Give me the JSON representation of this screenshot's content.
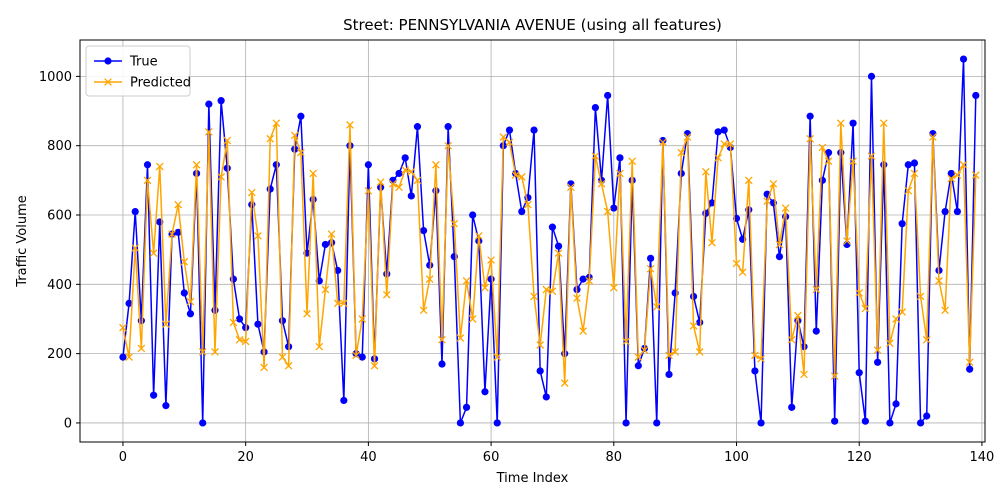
{
  "chart_data": {
    "type": "line",
    "title": "Street: PENNSYLVANIA AVENUE (using all features)",
    "xlabel": "Time Index",
    "ylabel": "Traffic Volume",
    "xlim": [
      -7,
      140.5
    ],
    "ylim": [
      -55,
      1105
    ],
    "xticks": [
      0,
      20,
      40,
      60,
      80,
      100,
      120,
      140
    ],
    "yticks": [
      0,
      200,
      400,
      600,
      800,
      1000
    ],
    "grid": true,
    "legend": "top-left",
    "colors": {
      "true": "#0000ff",
      "predicted": "#ffa500"
    },
    "x_start": 0,
    "series": [
      {
        "name": "True",
        "marker": "circle",
        "values": [
          190,
          345,
          610,
          295,
          745,
          80,
          580,
          50,
          545,
          550,
          375,
          315,
          720,
          0,
          920,
          325,
          930,
          735,
          415,
          300,
          275,
          630,
          285,
          205,
          675,
          745,
          295,
          220,
          790,
          885,
          490,
          645,
          410,
          515,
          520,
          440,
          65,
          800,
          200,
          190,
          745,
          185,
          680,
          430,
          700,
          720,
          765,
          655,
          855,
          555,
          455,
          670,
          170,
          855,
          480,
          0,
          45,
          600,
          525,
          90,
          415,
          0,
          800,
          845,
          720,
          610,
          650,
          845,
          150,
          75,
          565,
          510,
          200,
          690,
          385,
          415,
          420,
          910,
          700,
          945,
          620,
          765,
          0,
          700,
          165,
          215,
          475,
          0,
          815,
          140,
          375,
          720,
          835,
          365,
          290,
          605,
          635,
          840,
          845,
          795,
          590,
          530,
          615,
          150,
          0,
          660,
          635,
          480,
          595,
          45,
          295,
          220,
          885,
          265,
          700,
          780,
          5,
          780,
          515,
          865,
          145,
          5,
          1000,
          175,
          745,
          0,
          55,
          575,
          745,
          750,
          0,
          20,
          835,
          440,
          610,
          720,
          610,
          1050,
          155,
          945
        ]
      },
      {
        "name": "Predicted",
        "marker": "x",
        "values": [
          275,
          190,
          505,
          215,
          700,
          490,
          740,
          285,
          545,
          630,
          465,
          350,
          745,
          205,
          840,
          205,
          710,
          815,
          290,
          240,
          235,
          665,
          540,
          160,
          820,
          865,
          190,
          165,
          830,
          780,
          315,
          720,
          220,
          385,
          545,
          345,
          345,
          860,
          195,
          300,
          670,
          165,
          695,
          370,
          690,
          680,
          730,
          725,
          700,
          325,
          415,
          745,
          240,
          800,
          575,
          245,
          410,
          300,
          540,
          390,
          470,
          190,
          825,
          810,
          715,
          710,
          630,
          365,
          225,
          385,
          380,
          490,
          115,
          680,
          360,
          265,
          410,
          770,
          690,
          610,
          390,
          720,
          235,
          755,
          190,
          210,
          445,
          335,
          810,
          195,
          205,
          780,
          825,
          280,
          205,
          725,
          520,
          765,
          805,
          805,
          460,
          435,
          700,
          195,
          185,
          640,
          690,
          515,
          620,
          240,
          310,
          140,
          820,
          385,
          795,
          755,
          135,
          865,
          525,
          755,
          375,
          330,
          770,
          210,
          865,
          230,
          300,
          320,
          670,
          720,
          365,
          240,
          825,
          410,
          325,
          705,
          715,
          745,
          175,
          715
        ]
      }
    ]
  }
}
